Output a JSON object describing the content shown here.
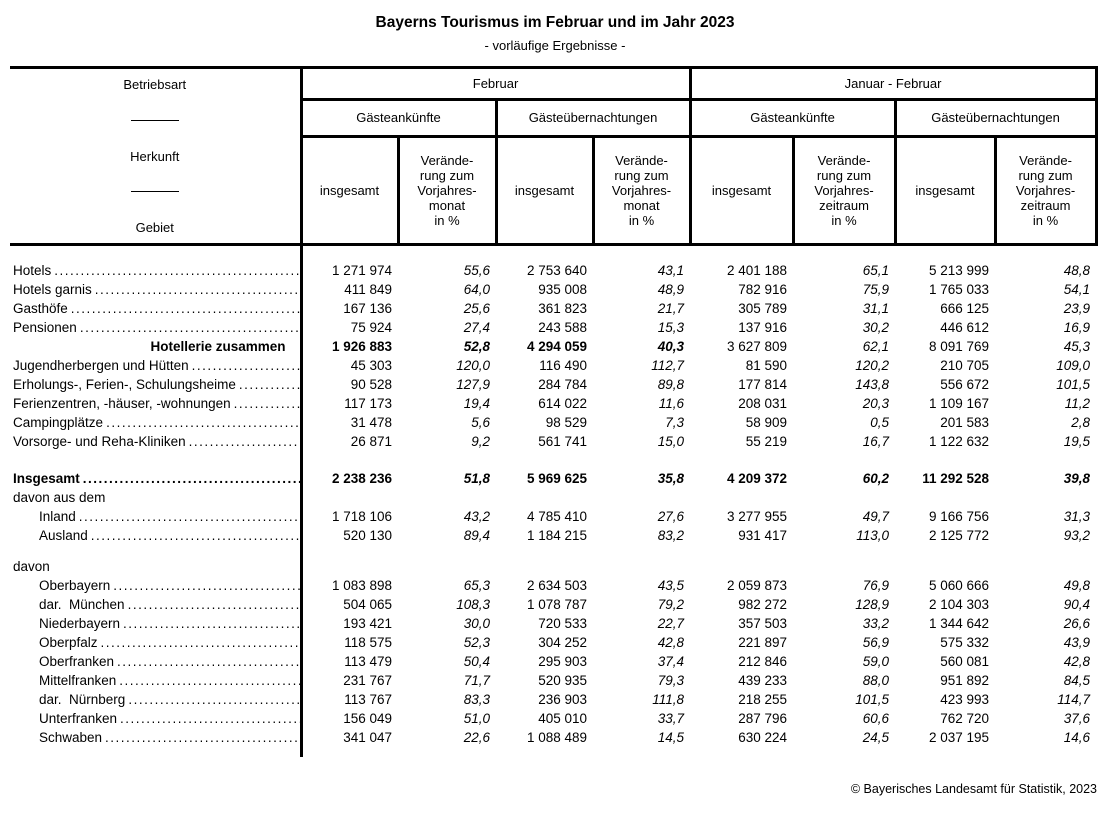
{
  "title": "Bayerns Tourismus im Februar und im Jahr 2023",
  "subtitle": "- vorläufige Ergebnisse -",
  "footer": "© Bayerisches Landesamt für Statistik, 2023",
  "header": {
    "stub": [
      "Betriebsart",
      "Herkunft",
      "Gebiet"
    ],
    "groups": [
      "Februar",
      "Januar - Februar"
    ],
    "subgroups": [
      "Gästeankünfte",
      "Gästeübernachtungen",
      "Gästeankünfte",
      "Gästeübernachtungen"
    ],
    "total_label": "insgesamt",
    "change_month": "Verände-\nrung zum\nVorjahres-\nmonat\nin %",
    "change_period": "Verände-\nrung zum\nVorjahres-\nzeitraum\nin %"
  },
  "table": {
    "rows": [
      {
        "spacer": 16
      },
      {
        "label": "Hotels",
        "indent": 0,
        "dots": true,
        "bold": "none",
        "values": [
          "1 271 974",
          "55,6",
          "2 753 640",
          "43,1",
          "2 401 188",
          "65,1",
          "5 213 999",
          "48,8"
        ]
      },
      {
        "label": "Hotels garnis",
        "indent": 0,
        "dots": true,
        "bold": "none",
        "values": [
          "411 849",
          "64,0",
          "935 008",
          "48,9",
          "782 916",
          "75,9",
          "1 765 033",
          "54,1"
        ]
      },
      {
        "label": "Gasthöfe",
        "indent": 0,
        "dots": true,
        "bold": "none",
        "values": [
          "167 136",
          "25,6",
          "361 823",
          "21,7",
          "305 789",
          "31,1",
          "666 125",
          "23,9"
        ]
      },
      {
        "label": "Pensionen",
        "indent": 0,
        "dots": true,
        "bold": "none",
        "values": [
          "75 924",
          "27,4",
          "243 588",
          "15,3",
          "137 916",
          "30,2",
          "446 612",
          "16,9"
        ]
      },
      {
        "label": "Hotellerie zusammen",
        "indent": 0,
        "dots": false,
        "bold": "feb",
        "alignRight": true,
        "values": [
          "1 926 883",
          "52,8",
          "4 294 059",
          "40,3",
          "3 627 809",
          "62,1",
          "8 091 769",
          "45,3"
        ]
      },
      {
        "label": "Jugendherbergen und Hütten",
        "indent": 0,
        "dots": true,
        "bold": "none",
        "values": [
          "45 303",
          "120,0",
          "116 490",
          "112,7",
          "81 590",
          "120,2",
          "210 705",
          "109,0"
        ]
      },
      {
        "label": "Erholungs-, Ferien-, Schulungsheime",
        "indent": 0,
        "dots": true,
        "bold": "none",
        "values": [
          "90 528",
          "127,9",
          "284 784",
          "89,8",
          "177 814",
          "143,8",
          "556 672",
          "101,5"
        ]
      },
      {
        "label": "Ferienzentren, -häuser, -wohnungen",
        "indent": 0,
        "dots": true,
        "bold": "none",
        "values": [
          "117 173",
          "19,4",
          "614 022",
          "11,6",
          "208 031",
          "20,3",
          "1 109 167",
          "11,2"
        ]
      },
      {
        "label": "Campingplätze",
        "indent": 0,
        "dots": true,
        "bold": "none",
        "values": [
          "31 478",
          "5,6",
          "98 529",
          "7,3",
          "58 909",
          "0,5",
          "201 583",
          "2,8"
        ]
      },
      {
        "label": "Vorsorge- und Reha-Kliniken",
        "indent": 0,
        "dots": true,
        "bold": "none",
        "values": [
          "26 871",
          "9,2",
          "561 741",
          "15,0",
          "55 219",
          "16,7",
          "1 122 632",
          "19,5"
        ]
      },
      {
        "spacer": 18
      },
      {
        "label": "Insgesamt",
        "indent": 0,
        "dots": true,
        "bold": "all",
        "values": [
          "2 238 236",
          "51,8",
          "5 969 625",
          "35,8",
          "4 209 372",
          "60,2",
          "11 292 528",
          "39,8"
        ]
      },
      {
        "label": "davon aus dem",
        "indent": 0,
        "dots": false,
        "bold": "none",
        "values": [
          "",
          "",
          "",
          "",
          "",
          "",
          "",
          ""
        ]
      },
      {
        "label": "Inland",
        "indent": 1,
        "dots": true,
        "bold": "none",
        "values": [
          "1 718 106",
          "43,2",
          "4 785 410",
          "27,6",
          "3 277 955",
          "49,7",
          "9 166 756",
          "31,3"
        ]
      },
      {
        "label": "Ausland",
        "indent": 1,
        "dots": true,
        "bold": "none",
        "values": [
          "520 130",
          "89,4",
          "1 184 215",
          "83,2",
          "931 417",
          "113,0",
          "2 125 772",
          "93,2"
        ]
      },
      {
        "spacer": 12
      },
      {
        "label": "davon",
        "indent": 0,
        "dots": false,
        "bold": "none",
        "values": [
          "",
          "",
          "",
          "",
          "",
          "",
          "",
          ""
        ]
      },
      {
        "label": "Oberbayern",
        "indent": 1,
        "dots": true,
        "bold": "none",
        "values": [
          "1 083 898",
          "65,3",
          "2 634 503",
          "43,5",
          "2 059 873",
          "76,9",
          "5 060 666",
          "49,8"
        ]
      },
      {
        "label": "dar.  München",
        "indent": 1,
        "dots": true,
        "bold": "none",
        "values": [
          "504 065",
          "108,3",
          "1 078 787",
          "79,2",
          "982 272",
          "128,9",
          "2 104 303",
          "90,4"
        ]
      },
      {
        "label": "Niederbayern",
        "indent": 1,
        "dots": true,
        "bold": "none",
        "values": [
          "193 421",
          "30,0",
          "720 533",
          "22,7",
          "357 503",
          "33,2",
          "1 344 642",
          "26,6"
        ]
      },
      {
        "label": "Oberpfalz",
        "indent": 1,
        "dots": true,
        "bold": "none",
        "values": [
          "118 575",
          "52,3",
          "304 252",
          "42,8",
          "221 897",
          "56,9",
          "575 332",
          "43,9"
        ]
      },
      {
        "label": "Oberfranken",
        "indent": 1,
        "dots": true,
        "bold": "none",
        "values": [
          "113 479",
          "50,4",
          "295 903",
          "37,4",
          "212 846",
          "59,0",
          "560 081",
          "42,8"
        ]
      },
      {
        "label": "Mittelfranken",
        "indent": 1,
        "dots": true,
        "bold": "none",
        "values": [
          "231 767",
          "71,7",
          "520 935",
          "79,3",
          "439 233",
          "88,0",
          "951 892",
          "84,5"
        ]
      },
      {
        "label": "dar.  Nürnberg",
        "indent": 1,
        "dots": true,
        "bold": "none",
        "values": [
          "113 767",
          "83,3",
          "236 903",
          "111,8",
          "218 255",
          "101,5",
          "423 993",
          "114,7"
        ]
      },
      {
        "label": "Unterfranken",
        "indent": 1,
        "dots": true,
        "bold": "none",
        "values": [
          "156 049",
          "51,0",
          "405 010",
          "33,7",
          "287 796",
          "60,6",
          "762 720",
          "37,6"
        ]
      },
      {
        "label": "Schwaben",
        "indent": 1,
        "dots": true,
        "bold": "none",
        "values": [
          "341 047",
          "22,6",
          "1 088 489",
          "14,5",
          "630 224",
          "24,5",
          "2 037 195",
          "14,6"
        ]
      },
      {
        "spacer": 10
      }
    ]
  }
}
